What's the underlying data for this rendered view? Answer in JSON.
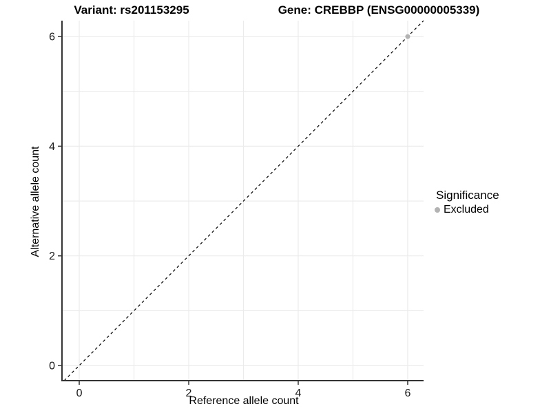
{
  "header": {
    "variant_title": "Variant: rs201153295",
    "gene_title": "Gene: CREBBP (ENSG00000005339)"
  },
  "axes": {
    "x_label": "Reference allele count",
    "y_label": "Alternative allele count"
  },
  "legend": {
    "title": "Significance",
    "items": [
      {
        "label": "Excluded",
        "color": "#b3b3b3"
      }
    ]
  },
  "chart_data": {
    "type": "scatter",
    "title": "Variant: rs201153295 | Gene: CREBBP (ENSG00000005339)",
    "xlabel": "Reference allele count",
    "ylabel": "Alternative allele count",
    "xlim": [
      -0.315,
      6.29
    ],
    "ylim": [
      -0.276,
      6.29
    ],
    "x_ticks": [
      0,
      2,
      4,
      6
    ],
    "y_ticks": [
      0,
      2,
      4,
      6
    ],
    "x_gridlines": [
      0,
      1,
      2,
      3,
      4,
      5,
      6
    ],
    "y_gridlines": [
      0,
      1,
      2,
      3,
      4,
      5,
      6
    ],
    "grid": "on",
    "legend_position": "right",
    "reference_line": {
      "type": "identity",
      "slope": 1,
      "intercept": 0,
      "style": "dashed",
      "color": "#000000"
    },
    "series": [
      {
        "name": "Excluded",
        "color": "#b3b3b3",
        "points": [
          {
            "x": 6,
            "y": 6
          }
        ]
      }
    ],
    "colors": {
      "gridline": "#ebebeb",
      "axis_line": "#333333",
      "tick_mark": "#333333",
      "tick_label": "#1a1a1a"
    }
  }
}
